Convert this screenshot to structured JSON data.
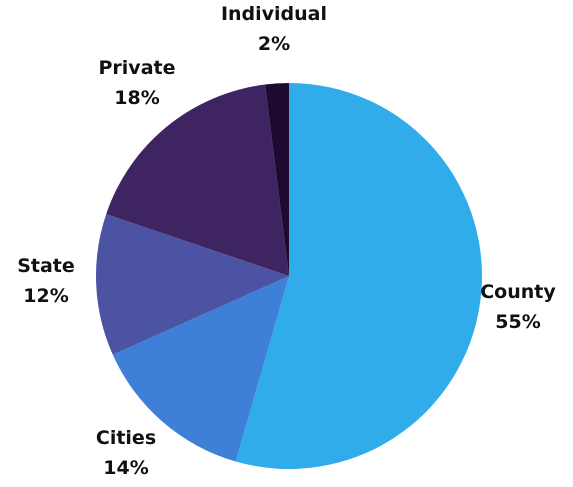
{
  "chart_data": {
    "type": "pie",
    "title": "",
    "slices": [
      {
        "label": "County",
        "value": 55,
        "value_label": "55%",
        "color": "#30acea"
      },
      {
        "label": "Cities",
        "value": 14,
        "value_label": "14%",
        "color": "#3e7fd7"
      },
      {
        "label": "State",
        "value": 12,
        "value_label": "12%",
        "color": "#4c53a2"
      },
      {
        "label": "Private",
        "value": 18,
        "value_label": "18%",
        "color": "#3e2562"
      },
      {
        "label": "Individual",
        "value": 2,
        "value_label": "2%",
        "color": "#1e0a31"
      }
    ],
    "start_angle_deg": 0,
    "direction": "clockwise",
    "legend": "none"
  }
}
